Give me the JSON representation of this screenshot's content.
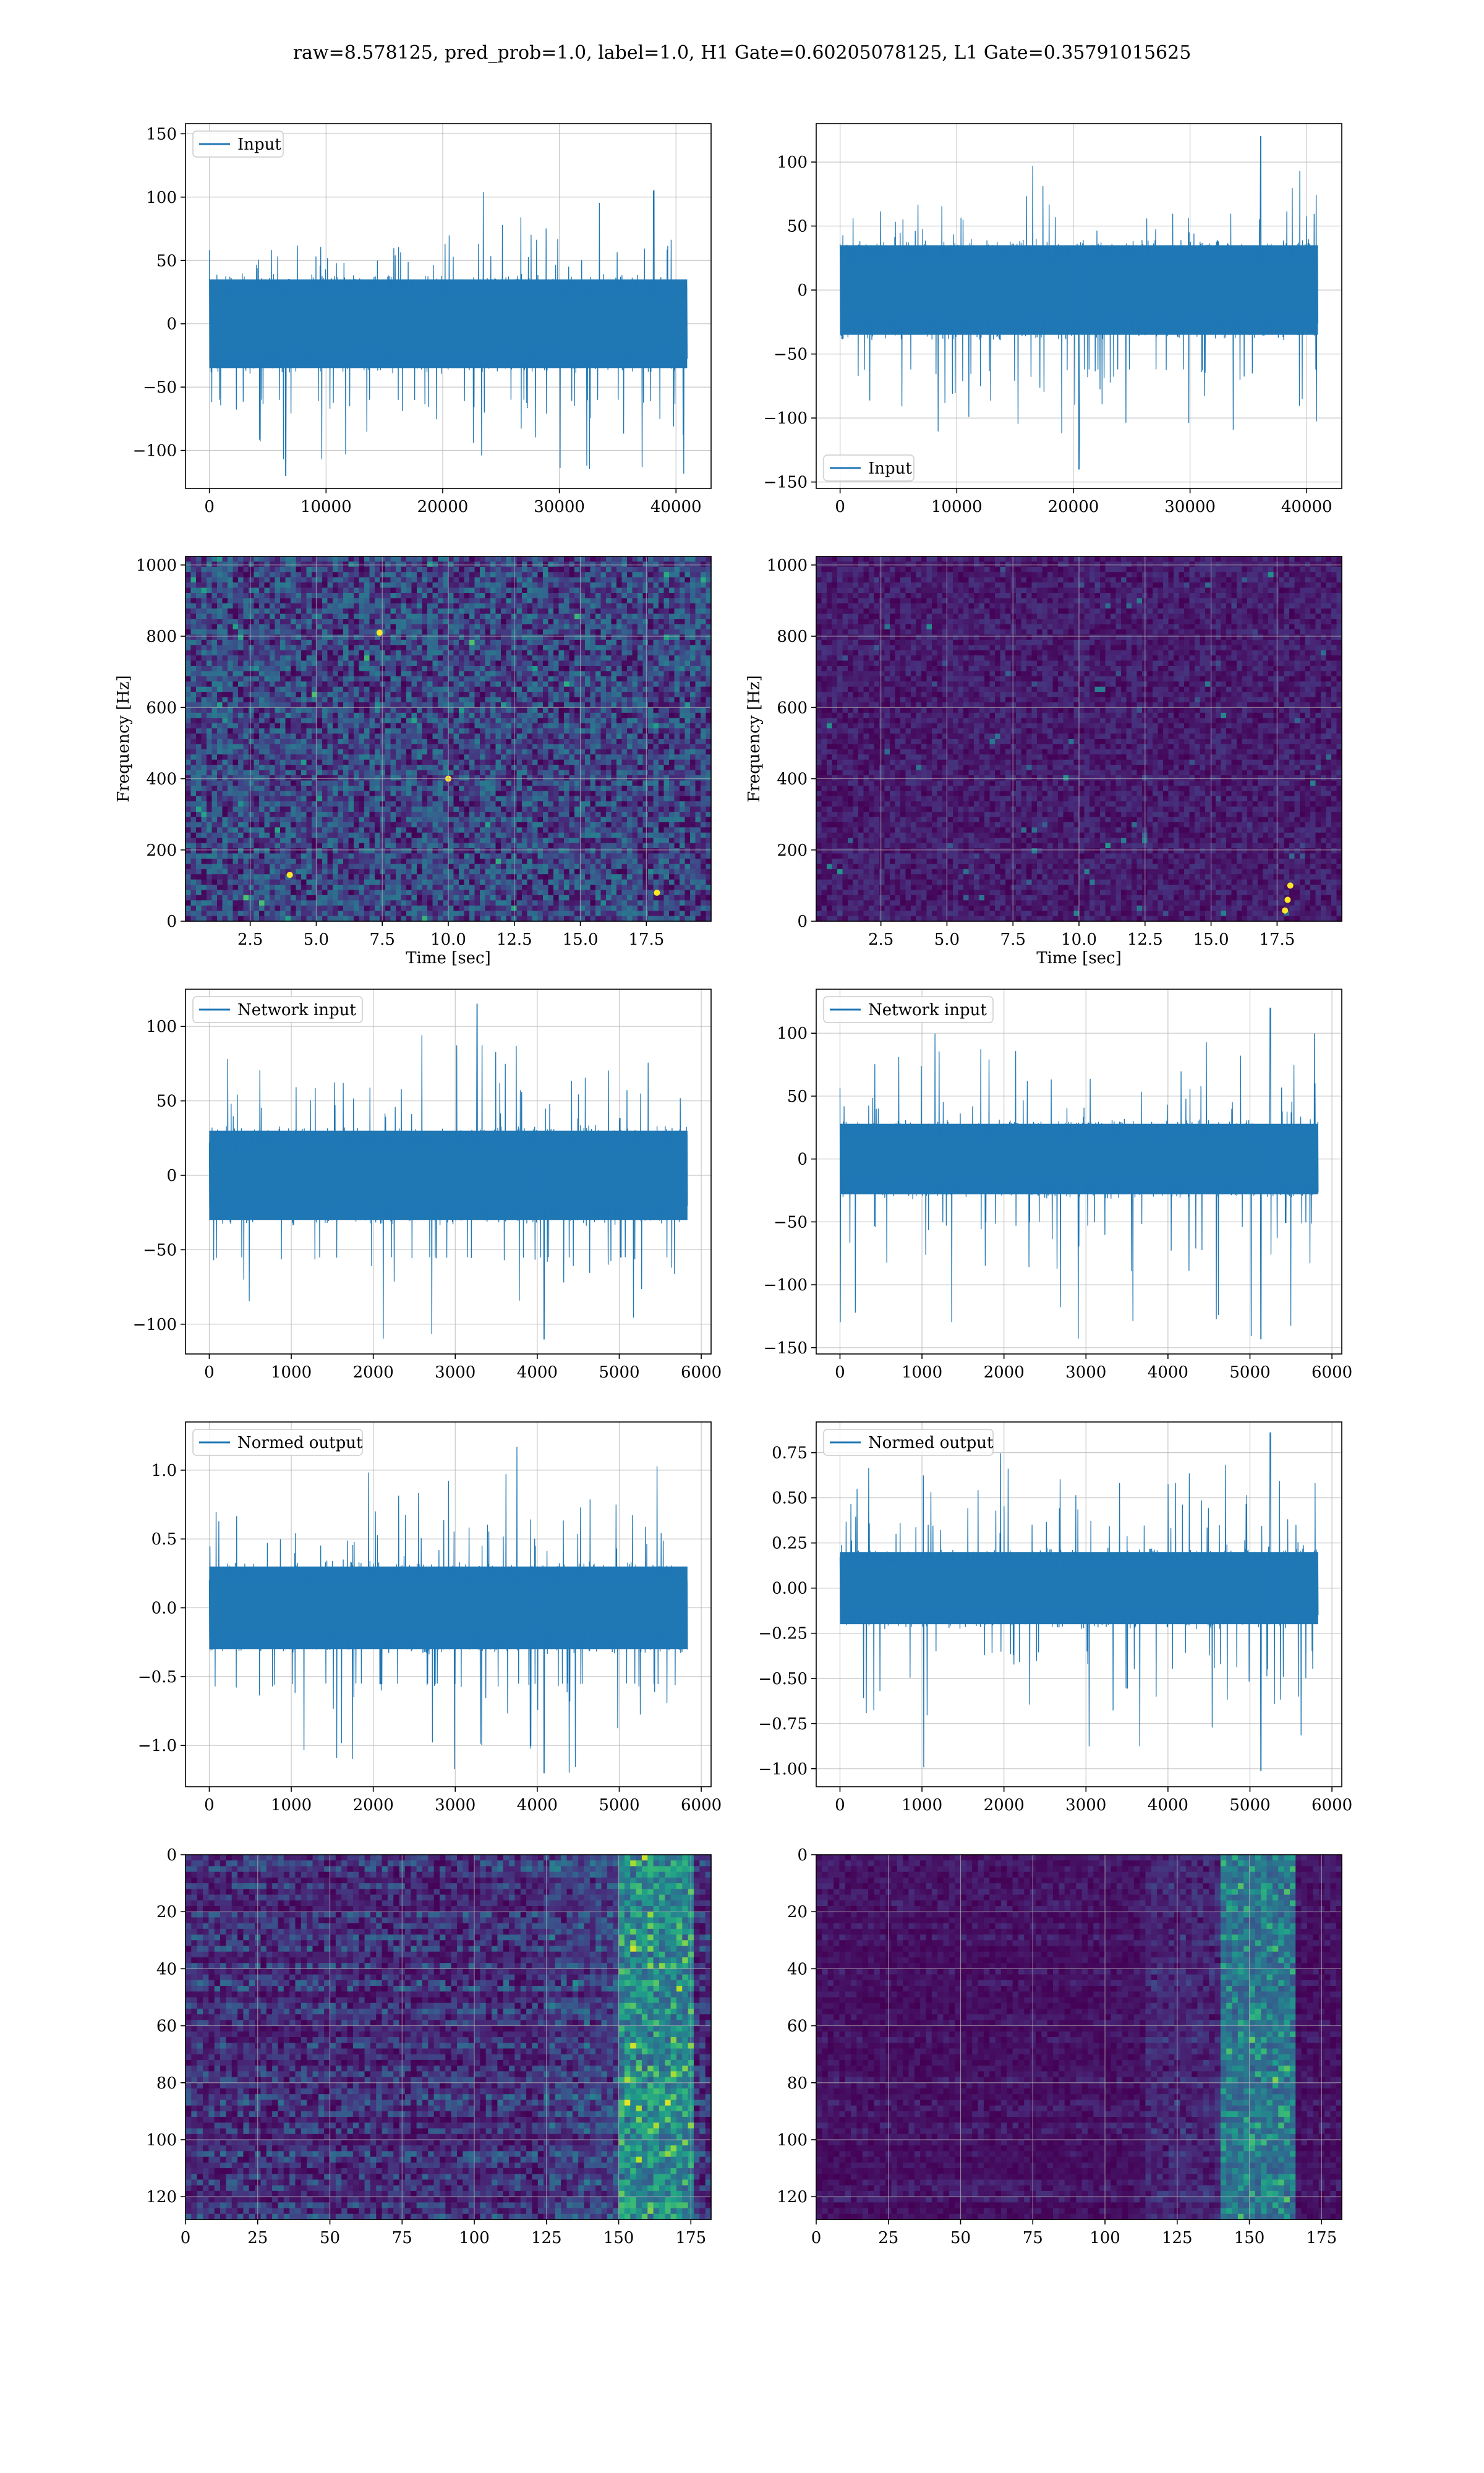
{
  "figure": {
    "title": "raw=8.578125, pred_prob=1.0, label=1.0, H1 Gate=0.60205078125, L1 Gate=0.35791015625"
  },
  "colors": {
    "line": "#1f77b4",
    "grid": "#b0b0b0",
    "viridis_low": "#440154",
    "viridis_mid": "#21918c",
    "viridis_high": "#fde725"
  },
  "chart_data": [
    {
      "id": "h1-input",
      "type": "line",
      "legend": "Input",
      "legend_loc": "upper-left",
      "xlim": [
        -2048,
        43008
      ],
      "ylim": [
        -130,
        158
      ],
      "xticks": [
        0,
        10000,
        20000,
        30000,
        40000
      ],
      "yticks": [
        -100,
        -50,
        0,
        50,
        100,
        150
      ],
      "x_max": 40960,
      "grid": true,
      "series": [
        {
          "name": "Input",
          "core": 35,
          "p95": 60,
          "peak_pos": 105,
          "peak_neg": -120,
          "peak_at": [
            0.93,
            0.16
          ]
        }
      ]
    },
    {
      "id": "l1-input",
      "type": "line",
      "legend": "Input",
      "legend_loc": "lower-left",
      "xlim": [
        -2048,
        43008
      ],
      "ylim": [
        -155,
        130
      ],
      "xticks": [
        0,
        10000,
        20000,
        30000,
        40000
      ],
      "yticks": [
        -150,
        -100,
        -50,
        0,
        50,
        100
      ],
      "x_max": 40960,
      "grid": true,
      "series": [
        {
          "name": "Input",
          "core": 35,
          "p95": 62,
          "peak_pos": 120,
          "peak_neg": -140,
          "peak_at": [
            0.88,
            0.5
          ]
        }
      ]
    },
    {
      "id": "h1-spectrogram",
      "type": "heatmap",
      "xlabel": "Time [sec]",
      "ylabel": "Frequency [Hz]",
      "xlim": [
        0.05,
        19.95
      ],
      "ylim": [
        0,
        1024
      ],
      "xticks": [
        2.5,
        5.0,
        7.5,
        10.0,
        12.5,
        15.0,
        17.5
      ],
      "yticks": [
        0,
        200,
        400,
        600,
        800,
        1000
      ],
      "colormap": "viridis",
      "grid": true,
      "brightness": 0.32,
      "bright_spots": [
        [
          4.0,
          130
        ],
        [
          17.9,
          80
        ],
        [
          7.4,
          810
        ],
        [
          10.0,
          400
        ]
      ]
    },
    {
      "id": "l1-spectrogram",
      "type": "heatmap",
      "xlabel": "Time [sec]",
      "ylabel": "Frequency [Hz]",
      "xlim": [
        0.05,
        19.95
      ],
      "ylim": [
        0,
        1024
      ],
      "xticks": [
        2.5,
        5.0,
        7.5,
        10.0,
        12.5,
        15.0,
        17.5
      ],
      "yticks": [
        0,
        200,
        400,
        600,
        800,
        1000
      ],
      "colormap": "viridis",
      "grid": true,
      "brightness": 0.12,
      "bright_spots": [
        [
          17.9,
          60
        ],
        [
          18.0,
          100
        ],
        [
          17.8,
          30
        ]
      ]
    },
    {
      "id": "h1-network-input",
      "type": "line",
      "legend": "Network input",
      "legend_loc": "upper-left",
      "xlim": [
        -290,
        6120
      ],
      "ylim": [
        -120,
        125
      ],
      "xticks": [
        0,
        1000,
        2000,
        3000,
        4000,
        5000,
        6000
      ],
      "yticks": [
        -100,
        -50,
        0,
        50,
        100
      ],
      "x_max": 5832,
      "grid": true,
      "series": [
        {
          "name": "Network input",
          "core": 30,
          "p95": 55,
          "peak_pos": 115,
          "peak_neg": -110,
          "peak_at": [
            0.56,
            0.7
          ]
        }
      ]
    },
    {
      "id": "l1-network-input",
      "type": "line",
      "legend": "Network input",
      "legend_loc": "upper-left",
      "xlim": [
        -290,
        6120
      ],
      "ylim": [
        -155,
        135
      ],
      "xticks": [
        0,
        1000,
        2000,
        3000,
        4000,
        5000,
        6000
      ],
      "yticks": [
        -150,
        -100,
        -50,
        0,
        50,
        100
      ],
      "x_max": 5832,
      "grid": true,
      "series": [
        {
          "name": "Network input",
          "core": 28,
          "p95": 50,
          "peak_pos": 120,
          "peak_neg": -143,
          "peak_at": [
            0.9,
            0.88
          ]
        }
      ]
    },
    {
      "id": "h1-normed-output",
      "type": "line",
      "legend": "Normed output",
      "legend_loc": "upper-left",
      "xlim": [
        -290,
        6120
      ],
      "ylim": [
        -1.3,
        1.35
      ],
      "xticks": [
        0,
        1000,
        2000,
        3000,
        4000,
        5000,
        6000
      ],
      "yticks": [
        -1.0,
        -0.5,
        0.0,
        0.5,
        1.0
      ],
      "tick_labels_y": [
        "−1.0",
        "−0.5",
        "0.0",
        "0.5",
        "1.0"
      ],
      "x_max": 5832,
      "grid": true,
      "series": [
        {
          "name": "Normed output",
          "core": 0.3,
          "p95": 0.55,
          "peak_pos": 1.25,
          "peak_neg": -1.2,
          "peak_at": [
            0.7,
            0.7
          ]
        }
      ]
    },
    {
      "id": "l1-normed-output",
      "type": "line",
      "legend": "Normed output",
      "legend_loc": "upper-left",
      "xlim": [
        -290,
        6120
      ],
      "ylim": [
        -1.1,
        0.92
      ],
      "xticks": [
        0,
        1000,
        2000,
        3000,
        4000,
        5000,
        6000
      ],
      "yticks": [
        -1.0,
        -0.75,
        -0.5,
        -0.25,
        0.0,
        0.25,
        0.5,
        0.75
      ],
      "tick_labels_y": [
        "−1.00",
        "−0.75",
        "−0.50",
        "−0.25",
        "0.00",
        "0.25",
        "0.50",
        "0.75"
      ],
      "x_max": 5832,
      "grid": true,
      "series": [
        {
          "name": "Normed output",
          "core": 0.2,
          "p95": 0.35,
          "peak_pos": 0.86,
          "peak_neg": -1.01,
          "peak_at": [
            0.9,
            0.88
          ]
        }
      ]
    },
    {
      "id": "h1-feature-map",
      "type": "heatmap",
      "xlim": [
        0,
        182
      ],
      "ylim": [
        128,
        0
      ],
      "xticks": [
        0,
        25,
        50,
        75,
        100,
        125,
        150,
        175
      ],
      "yticks": [
        0,
        20,
        40,
        60,
        80,
        100,
        120
      ],
      "colormap": "viridis",
      "grid": true,
      "brightness": 0.3,
      "hot_band": [
        150,
        175
      ]
    },
    {
      "id": "l1-feature-map",
      "type": "heatmap",
      "xlim": [
        0,
        182
      ],
      "ylim": [
        128,
        0
      ],
      "xticks": [
        0,
        25,
        50,
        75,
        100,
        125,
        150,
        175
      ],
      "yticks": [
        0,
        20,
        40,
        60,
        80,
        100,
        120
      ],
      "colormap": "viridis",
      "grid": true,
      "brightness": 0.12,
      "hot_band": [
        140,
        165
      ]
    }
  ]
}
